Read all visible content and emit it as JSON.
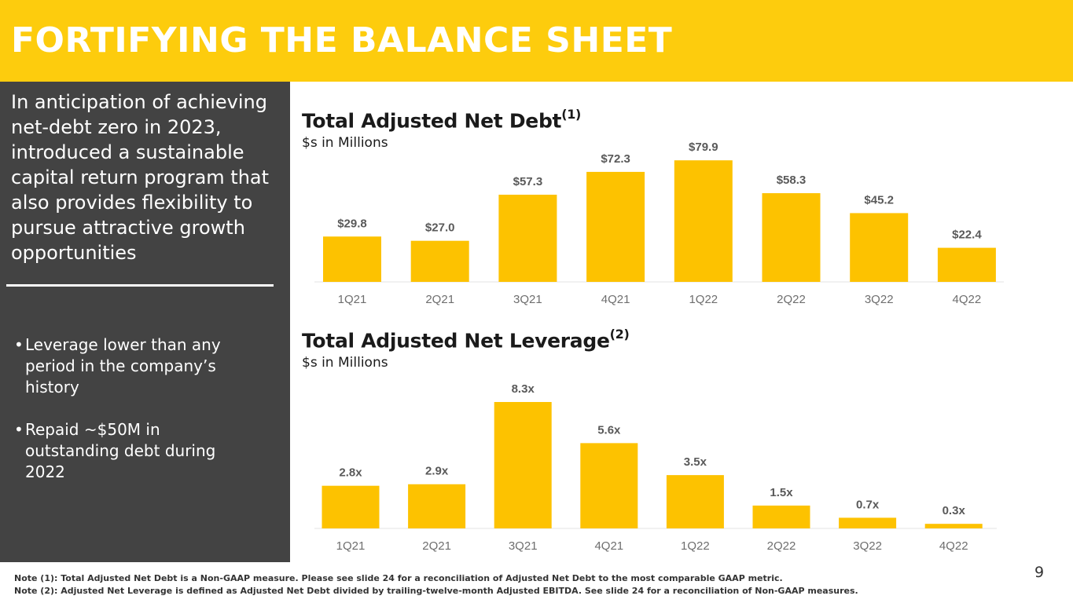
{
  "header": {
    "title": "FORTIFYING THE BALANCE SHEET"
  },
  "sidebar": {
    "intro": "In anticipation of achieving net-debt zero in 2023, introduced a sustainable capital return program that also provides flexibility to pursue attractive growth opportunities",
    "bullets": [
      "Leverage lower than any period in the company’s history",
      "Repaid ~$50M in outstanding debt during 2022"
    ]
  },
  "chart_data": [
    {
      "type": "bar",
      "title": "Total Adjusted Net Debt",
      "title_note": "(1)",
      "subtitle": "$s in Millions",
      "categories": [
        "1Q21",
        "2Q21",
        "3Q21",
        "4Q21",
        "1Q22",
        "2Q22",
        "3Q22",
        "4Q22"
      ],
      "values": [
        29.8,
        27.0,
        57.3,
        72.3,
        79.9,
        58.3,
        45.2,
        22.4
      ],
      "labels": [
        "$29.8",
        "$27.0",
        "$57.3",
        "$72.3",
        "$79.9",
        "$58.3",
        "$45.2",
        "$22.4"
      ],
      "ylim": [
        0,
        80
      ],
      "color": "#FDC200"
    },
    {
      "type": "bar",
      "title": "Total Adjusted Net Leverage",
      "title_note": "(2)",
      "subtitle": "$s in Millions",
      "categories": [
        "1Q21",
        "2Q21",
        "3Q21",
        "4Q21",
        "1Q22",
        "2Q22",
        "3Q22",
        "4Q22"
      ],
      "values": [
        2.8,
        2.9,
        8.3,
        5.6,
        3.5,
        1.5,
        0.7,
        0.3
      ],
      "labels": [
        "2.8x",
        "2.9x",
        "8.3x",
        "5.6x",
        "3.5x",
        "1.5x",
        "0.7x",
        "0.3x"
      ],
      "ylim": [
        0,
        8.3
      ],
      "color": "#FDC200"
    }
  ],
  "footnotes": [
    "Note (1): Total Adjusted Net Debt is a Non-GAAP measure. Please see slide 24 for a reconciliation of Adjusted Net Debt to the most comparable GAAP metric.",
    "Note (2): Adjusted Net Leverage is defined as Adjusted Net Debt divided by trailing-twelve-month Adjusted EBITDA. See slide 24 for a reconciliation of Non-GAAP measures."
  ],
  "page_number": "9"
}
